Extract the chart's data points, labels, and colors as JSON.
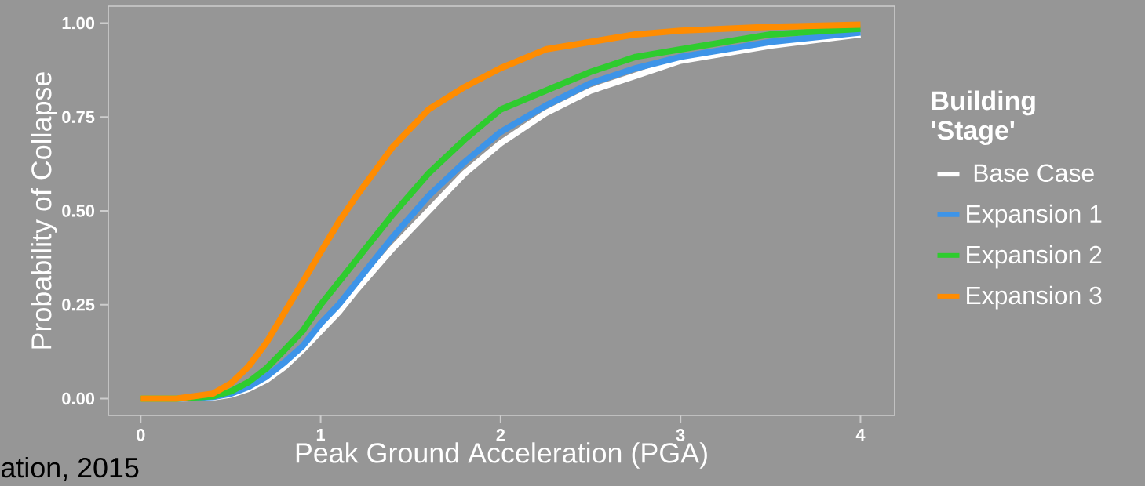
{
  "chart_data": {
    "type": "line",
    "xlabel": "Peak Ground Acceleration (PGA)",
    "ylabel": "Probability of Collapse",
    "legend_title": "Building 'Stage'",
    "annotations": [
      "ation, 2015"
    ],
    "x": [
      0,
      0.2,
      0.4,
      0.5,
      0.6,
      0.7,
      0.8,
      0.9,
      1.0,
      1.1,
      1.2,
      1.4,
      1.6,
      1.8,
      2.0,
      2.25,
      2.5,
      2.75,
      3,
      3.5,
      4
    ],
    "series": [
      {
        "name": "Base Case",
        "color": "#ffffff",
        "values": [
          0,
          0,
          0.003,
          0.01,
          0.026,
          0.05,
          0.085,
          0.13,
          0.18,
          0.23,
          0.29,
          0.4,
          0.5,
          0.6,
          0.68,
          0.76,
          0.82,
          0.86,
          0.9,
          0.94,
          0.97
        ]
      },
      {
        "name": "Expansion 1",
        "color": "#3d94e8",
        "values": [
          0,
          0,
          0.004,
          0.013,
          0.031,
          0.059,
          0.097,
          0.14,
          0.2,
          0.25,
          0.31,
          0.43,
          0.54,
          0.63,
          0.71,
          0.78,
          0.84,
          0.88,
          0.91,
          0.95,
          0.975
        ]
      },
      {
        "name": "Expansion 2",
        "color": "#2ecc2e",
        "values": [
          0,
          0,
          0.006,
          0.019,
          0.044,
          0.081,
          0.13,
          0.18,
          0.25,
          0.31,
          0.37,
          0.49,
          0.6,
          0.69,
          0.77,
          0.82,
          0.87,
          0.91,
          0.93,
          0.97,
          0.985
        ]
      },
      {
        "name": "Expansion 3",
        "color": "#ff8c00",
        "values": [
          0,
          0,
          0.013,
          0.04,
          0.086,
          0.15,
          0.23,
          0.31,
          0.39,
          0.47,
          0.54,
          0.67,
          0.77,
          0.83,
          0.88,
          0.93,
          0.95,
          0.97,
          0.98,
          0.99,
          0.996
        ]
      }
    ],
    "xlim": [
      -0.18,
      4.19
    ],
    "ylim": [
      -0.045,
      1.045
    ],
    "xticks": [
      0,
      1,
      2,
      3,
      4
    ],
    "yticks": [
      {
        "value": 0,
        "label": "0.00"
      },
      {
        "value": 0.25,
        "label": "0.25"
      },
      {
        "value": 0.5,
        "label": "0.50"
      },
      {
        "value": 0.75,
        "label": "0.75"
      },
      {
        "value": 1,
        "label": "1.00"
      }
    ],
    "grid": false,
    "legend": "right",
    "marker": "none",
    "line_style": "solid"
  }
}
